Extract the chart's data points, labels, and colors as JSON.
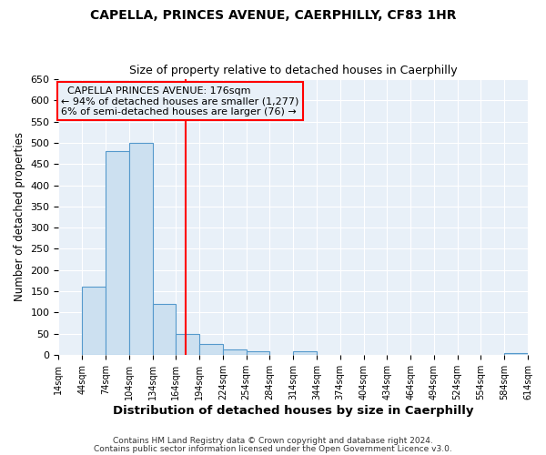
{
  "title": "CAPELLA, PRINCES AVENUE, CAERPHILLY, CF83 1HR",
  "subtitle": "Size of property relative to detached houses in Caerphilly",
  "xlabel": "Distribution of detached houses by size in Caerphilly",
  "ylabel": "Number of detached properties",
  "bin_edges": [
    14,
    44,
    74,
    104,
    134,
    164,
    194,
    224,
    254,
    284,
    314,
    344,
    374,
    404,
    434,
    464,
    494,
    524,
    554,
    584,
    614
  ],
  "bar_heights": [
    0,
    160,
    480,
    500,
    120,
    50,
    25,
    12,
    8,
    0,
    8,
    0,
    0,
    0,
    0,
    0,
    0,
    0,
    0,
    5
  ],
  "bar_color": "#cce0f0",
  "bar_edge_color": "#5599cc",
  "vline_x": 176,
  "vline_color": "red",
  "ylim": [
    0,
    650
  ],
  "yticks": [
    0,
    50,
    100,
    150,
    200,
    250,
    300,
    350,
    400,
    450,
    500,
    550,
    600,
    650
  ],
  "xtick_labels": [
    "14sqm",
    "44sqm",
    "74sqm",
    "104sqm",
    "134sqm",
    "164sqm",
    "194sqm",
    "224sqm",
    "254sqm",
    "284sqm",
    "314sqm",
    "344sqm",
    "374sqm",
    "404sqm",
    "434sqm",
    "464sqm",
    "494sqm",
    "524sqm",
    "554sqm",
    "584sqm",
    "614sqm"
  ],
  "annotation_title": "CAPELLA PRINCES AVENUE: 176sqm",
  "annotation_line1": "← 94% of detached houses are smaller (1,277)",
  "annotation_line2": "6% of semi-detached houses are larger (76) →",
  "annotation_box_color": "red",
  "footnote1": "Contains HM Land Registry data © Crown copyright and database right 2024.",
  "footnote2": "Contains public sector information licensed under the Open Government Licence v3.0.",
  "bg_color": "#ffffff",
  "plot_bg_color": "#e8f0f8"
}
